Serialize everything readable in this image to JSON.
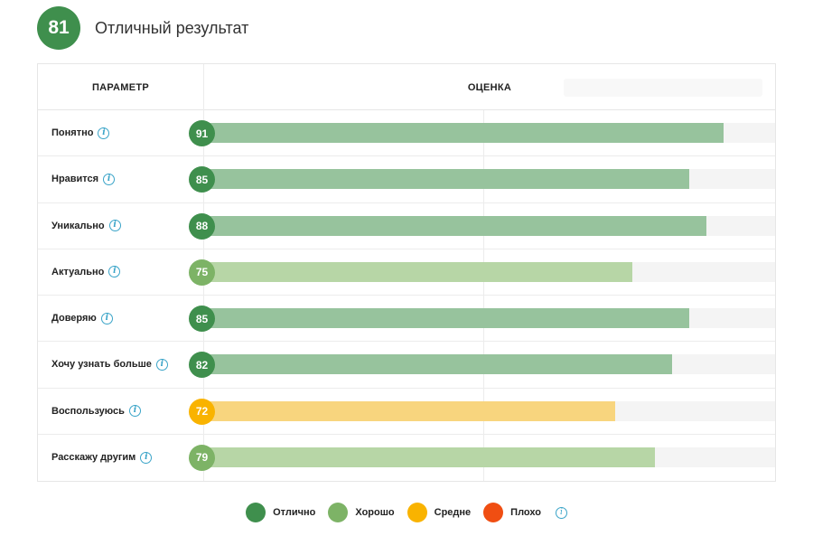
{
  "header": {
    "score": "81",
    "title": "Отличный результат",
    "badge_color": "#3f8f4d"
  },
  "table": {
    "col_param": "ПАРАМЕТР",
    "col_score": "ОЦЕНКА"
  },
  "colors": {
    "excellent_dot": "#3f8f4d",
    "excellent_bar": "#97c39d",
    "good_dot": "#7db366",
    "good_bar": "#b7d6a6",
    "average_dot": "#f9b300",
    "average_bar": "#f8d57e",
    "bad_dot": "#f04e12"
  },
  "chart_data": {
    "type": "bar",
    "orientation": "horizontal",
    "xlim": [
      0,
      100
    ],
    "categories": [
      "Понятно",
      "Нравится",
      "Уникально",
      "Актуально",
      "Доверяю",
      "Хочу узнать больше",
      "Воспользуюсь",
      "Расскажу другим"
    ],
    "values": [
      91,
      85,
      88,
      75,
      85,
      82,
      72,
      79
    ],
    "ratings": [
      "excellent",
      "excellent",
      "excellent",
      "good",
      "excellent",
      "excellent",
      "average",
      "good"
    ]
  },
  "legend": [
    {
      "key": "excellent",
      "label": "Отлично",
      "color": "#3f8f4d"
    },
    {
      "key": "good",
      "label": "Хорошо",
      "color": "#7db366"
    },
    {
      "key": "average",
      "label": "Средне",
      "color": "#f9b300"
    },
    {
      "key": "bad",
      "label": "Плохо",
      "color": "#f04e12"
    }
  ],
  "info_icon": "info-icon",
  "info_glyph": "i"
}
